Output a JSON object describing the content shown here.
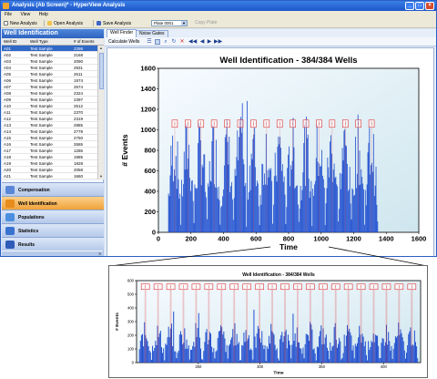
{
  "window": {
    "title": "Analysis (Ab Screen)* - HyperView Analysis",
    "buttons": [
      "minimize",
      "maximize",
      "close"
    ]
  },
  "menu": [
    "File",
    "View",
    "Help"
  ],
  "toolbar": {
    "new_analysis": "New Analysis",
    "open_analysis": "Open Analysis",
    "save_analysis": "Save Analysis",
    "plate_value": "Plate 0001",
    "copy_plate": "Copy Plate"
  },
  "left_panel": {
    "header": "Well Identification",
    "columns": [
      "Well ID",
      "Well Type",
      "# of Events"
    ],
    "rows": [
      [
        "A01",
        "Test Sample",
        "2298"
      ],
      [
        "A02",
        "Test Sample",
        "2168"
      ],
      [
        "A03",
        "Test Sample",
        "2090"
      ],
      [
        "A04",
        "Test Sample",
        "2931"
      ],
      [
        "A05",
        "Test Sample",
        "2611"
      ],
      [
        "A06",
        "Test Sample",
        "1974"
      ],
      [
        "A07",
        "Test Sample",
        "2574"
      ],
      [
        "A08",
        "Test Sample",
        "2324"
      ],
      [
        "A09",
        "Test Sample",
        "2397"
      ],
      [
        "A10",
        "Test Sample",
        "2512"
      ],
      [
        "A11",
        "Test Sample",
        "2370"
      ],
      [
        "A12",
        "Test Sample",
        "2319"
      ],
      [
        "A13",
        "Test Sample",
        "2885"
      ],
      [
        "A14",
        "Test Sample",
        "2779"
      ],
      [
        "A15",
        "Test Sample",
        "2750"
      ],
      [
        "A16",
        "Test Sample",
        "2665"
      ],
      [
        "A17",
        "Test Sample",
        "1286"
      ],
      [
        "A18",
        "Test Sample",
        "1985"
      ],
      [
        "A19",
        "Test Sample",
        "1828"
      ],
      [
        "A20",
        "Test Sample",
        "2058"
      ],
      [
        "A21",
        "Test Sample",
        "1660"
      ]
    ],
    "nav": [
      "Compensation",
      "Well Identification",
      "Populations",
      "Statistics",
      "Results"
    ],
    "active_nav": "Well Identification"
  },
  "right_panel": {
    "tabs": [
      "Well Finder",
      "Noise Gates"
    ],
    "active_tab": "Well Finder",
    "calculate_label": "Calculate Wells"
  },
  "colors": {
    "accent": "#2d63c0",
    "bar": "#1f4ecf",
    "marker": "#e03030",
    "active_nav": "#f0a239"
  },
  "chart_data": [
    {
      "type": "bar",
      "title": "Well Identification - 384/384 Wells",
      "xlabel": "Time",
      "ylabel": "# Events",
      "xlim": [
        0,
        1600
      ],
      "ylim": [
        0,
        1600
      ],
      "xticks": [
        0,
        200,
        400,
        600,
        800,
        1000,
        1200,
        1400,
        1600
      ],
      "yticks": [
        0,
        200,
        400,
        600,
        800,
        1000,
        1200,
        1400,
        1600
      ],
      "data_range": [
        60,
        1350
      ],
      "typical_peak": 1000,
      "max_peak": 1350,
      "marker_y": 1060,
      "well_markers": 16
    },
    {
      "type": "bar",
      "title": "Well Identification - 384/384 Wells",
      "xlabel": "Time",
      "ylabel": "# Events",
      "xlim": [
        200,
        430
      ],
      "ylim": [
        0,
        600
      ],
      "xticks": [
        250,
        300,
        350,
        400
      ],
      "yticks": [
        0,
        100,
        200,
        300,
        400,
        500,
        600
      ],
      "marker_y": 555,
      "well_markers": 22
    }
  ]
}
